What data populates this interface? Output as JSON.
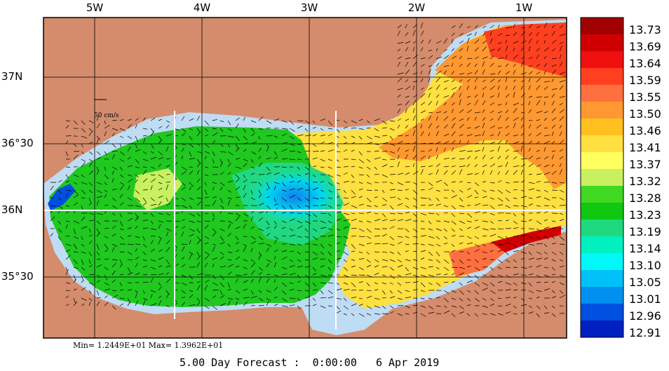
{
  "lon_labels": [
    {
      "text": "5W",
      "lon": -5
    },
    {
      "text": "4W",
      "lon": -4
    },
    {
      "text": "3W",
      "lon": -3
    },
    {
      "text": "2W",
      "lon": -2
    },
    {
      "text": "1W",
      "lon": -1
    }
  ],
  "lat_labels": [
    {
      "text": "37N",
      "lat": 37.0
    },
    {
      "text": "36°30",
      "lat": 36.5
    },
    {
      "text": "36N",
      "lat": 36.0
    },
    {
      "text": "35°30",
      "lat": 35.5
    }
  ],
  "scale": {
    "label": "50 cm/s"
  },
  "minmax": "Min= 1.2449E+01  Max= 1.3962E+01",
  "forecast": "5.00 Day Forecast :  0:00:00   6 Apr 2019",
  "colors": {
    "land": "#d48c6c",
    "shelf": "#bedcf4",
    "grid": "#ffffff",
    "arrows": "#000000"
  },
  "legend": {
    "values": [
      "13.73",
      "13.69",
      "13.64",
      "13.59",
      "13.55",
      "13.50",
      "13.46",
      "13.41",
      "13.37",
      "13.32",
      "13.28",
      "13.23",
      "13.19",
      "13.14",
      "13.10",
      "13.05",
      "13.01",
      "12.96",
      "12.91"
    ],
    "colors": [
      "#a00000",
      "#d00000",
      "#f01010",
      "#ff4020",
      "#ff7040",
      "#ff9830",
      "#ffc020",
      "#ffe040",
      "#ffff60",
      "#c8f060",
      "#40d820",
      "#10c810",
      "#20d880",
      "#00f0c0",
      "#00f8f8",
      "#00c0f8",
      "#0090f0",
      "#0050e0",
      "#0020c0"
    ]
  }
}
